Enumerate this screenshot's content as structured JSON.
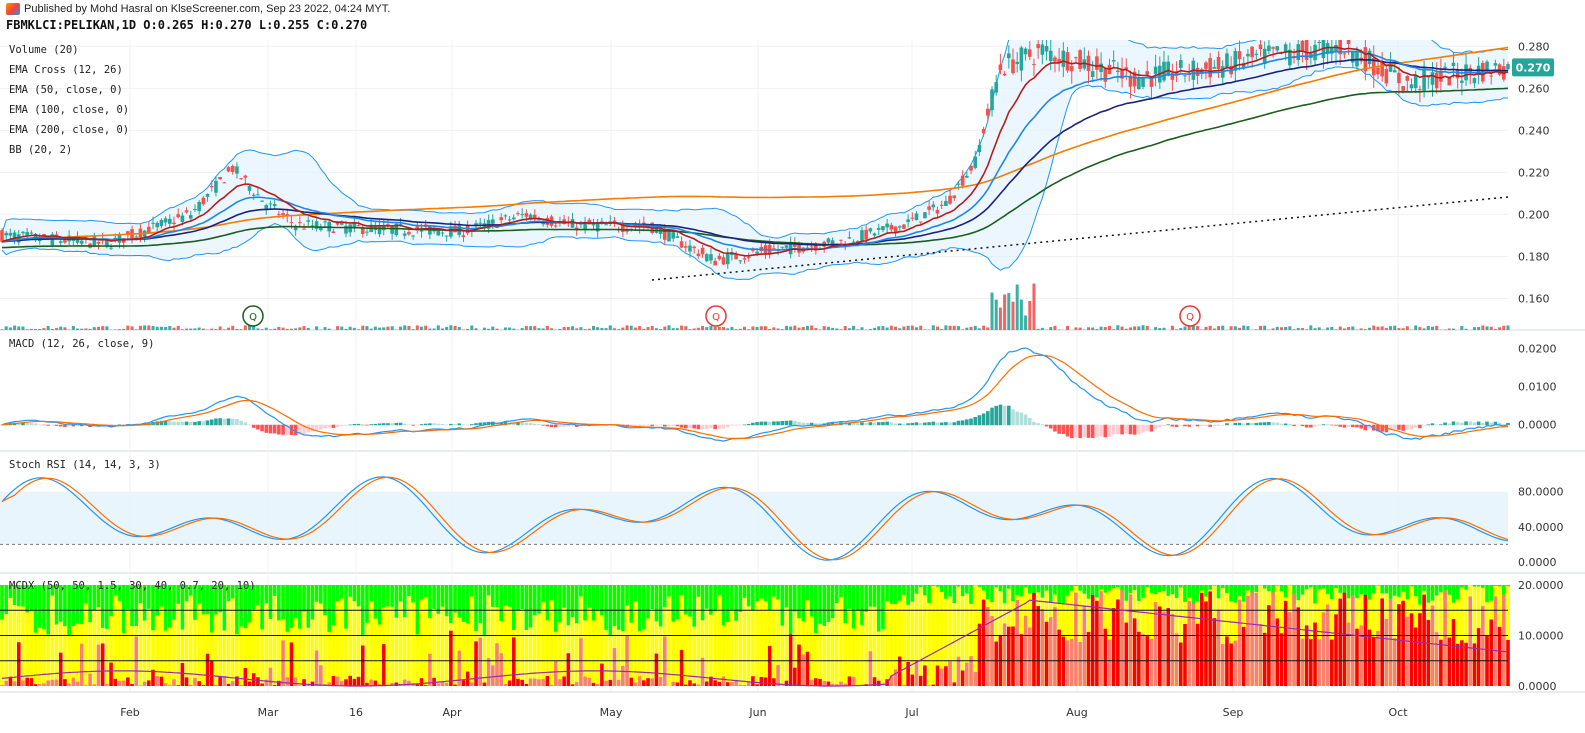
{
  "header": {
    "published": "Published by Mohd Hasral on KlseScreener.com, Sep 23 2022, 04:24 MYT.",
    "symbol_line": "FBMKLCI:PELIKAN,1D  O:0.265 H:0.270 L:0.255 C:0.270"
  },
  "colors": {
    "up": "#26a69a",
    "down": "#ef5350",
    "bb_fill": "#e3f2fd",
    "bb_line": "#2196f3",
    "ema_fast": "#b71c1c",
    "ema_slow": "#1e88e5",
    "ema50": "#1a237e",
    "ema100": "#1b5e20",
    "ema200": "#f57c00",
    "price_tag": "#26a69a",
    "macd_line": "#2196f3",
    "signal_line": "#ff6d00",
    "mcdx_green": "#00ff00",
    "mcdx_yellow": "#ffff00",
    "mcdx_red": "#ff0000",
    "mcdx_salmon": "#fa8072"
  },
  "main_panel": {
    "legend": [
      "Volume (20)",
      "EMA Cross (12, 26)",
      "EMA (50, close, 0)",
      "EMA (100, close, 0)",
      "EMA (200, close, 0)",
      "BB (20, 2)"
    ],
    "price_axis": [
      "0.280",
      "0.260",
      "0.240",
      "0.220",
      "0.200",
      "0.180",
      "0.160"
    ],
    "last_price": "0.270",
    "markers": [
      {
        "x_label": "Feb",
        "label": "Q",
        "color": "#1b5e20"
      },
      {
        "x_label": "May",
        "label": "Q",
        "color": "#e53935"
      },
      {
        "x_label": "Aug",
        "label": "Q",
        "color": "#e53935"
      }
    ]
  },
  "macd_panel": {
    "title": "MACD (12, 26, close, 9)",
    "axis": [
      "0.0200",
      "0.0100",
      "0.0000"
    ]
  },
  "stoch_panel": {
    "title": "Stoch RSI (14, 14, 3, 3)",
    "axis": [
      "80.0000",
      "40.0000",
      "0.0000"
    ]
  },
  "mcdx_panel": {
    "title": "MCDX (50, 50, 1.5, 30, 40, 0.7, 20, 10)",
    "axis": [
      "20.0000",
      "10.0000",
      "0.0000"
    ]
  },
  "x_axis": [
    "Feb",
    "Mar",
    "16",
    "Apr",
    "May",
    "Jun",
    "Jul",
    "Aug",
    "Sep",
    "Oct"
  ],
  "chart_data": {
    "type": "candlestick",
    "title": "FBMKLCI:PELIKAN,1D",
    "ylim": [
      0.15,
      0.28
    ],
    "series_price_keypoints": [
      {
        "x": "Jan",
        "close": 0.19
      },
      {
        "x": "Feb",
        "close": 0.2
      },
      {
        "x": "Feb-mid",
        "close": 0.225
      },
      {
        "x": "Mar",
        "close": 0.195
      },
      {
        "x": "16",
        "close": 0.193
      },
      {
        "x": "Apr",
        "close": 0.192
      },
      {
        "x": "Apr-mid",
        "close": 0.2
      },
      {
        "x": "May",
        "close": 0.195
      },
      {
        "x": "May-mid",
        "close": 0.175
      },
      {
        "x": "Jun",
        "close": 0.185
      },
      {
        "x": "Jun-mid",
        "close": 0.195
      },
      {
        "x": "Jul",
        "close": 0.21
      },
      {
        "x": "Jul-mid",
        "close": 0.275
      },
      {
        "x": "Aug",
        "close": 0.27
      },
      {
        "x": "Sep",
        "close": 0.28
      },
      {
        "x": "Oct",
        "close": 0.265
      },
      {
        "x": "Oct-end",
        "close": 0.27
      }
    ],
    "macd_range": [
      -0.004,
      0.024
    ],
    "stoch_range": [
      0,
      100
    ],
    "mcdx_range": [
      0,
      20
    ]
  }
}
